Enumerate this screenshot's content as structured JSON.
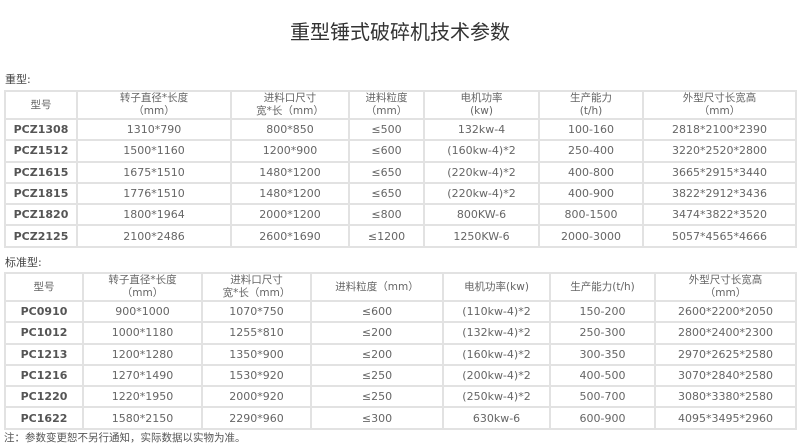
{
  "title": "重型锤式破碎机技术参数",
  "heavy": {
    "label": "重型:",
    "headers": [
      [
        "型号",
        ""
      ],
      [
        "转子直径*长度",
        "（mm）"
      ],
      [
        "进料口尺寸",
        "宽*长（mm）"
      ],
      [
        "进料粒度",
        "（mm）"
      ],
      [
        "电机功率",
        "(kw)"
      ],
      [
        "生产能力",
        "(t/h)"
      ],
      [
        "外型尺寸长宽高",
        "（mm）"
      ]
    ],
    "rows": [
      [
        "PCZ1308",
        "1310*790",
        "800*850",
        "≤500",
        "132kw-4",
        "100-160",
        "2818*2100*2390"
      ],
      [
        "PCZ1512",
        "1500*1160",
        "1200*900",
        "≤600",
        "(160kw-4)*2",
        "250-400",
        "3220*2520*2800"
      ],
      [
        "PCZ1615",
        "1675*1510",
        "1480*1200",
        "≤650",
        "(220kw-4)*2",
        "400-800",
        "3665*2915*3440"
      ],
      [
        "PCZ1815",
        "1776*1510",
        "1480*1200",
        "≤650",
        "(220kw-4)*2",
        "400-900",
        "3822*2912*3436"
      ],
      [
        "PCZ1820",
        "1800*1964",
        "2000*1200",
        "≤800",
        "800KW-6",
        "800-1500",
        "3474*3822*3520"
      ],
      [
        "PCZ2125",
        "2100*2486",
        "2600*1690",
        "≤1200",
        "1250KW-6",
        "2000-3000",
        "5057*4565*4666"
      ]
    ]
  },
  "standard": {
    "label": "标准型:",
    "headers": [
      [
        "型号",
        ""
      ],
      [
        "转子直径*长度",
        "（mm）"
      ],
      [
        "进料口尺寸",
        "宽*长（mm）"
      ],
      [
        "进料粒度（mm）",
        ""
      ],
      [
        "电机功率(kw)",
        ""
      ],
      [
        "生产能力(t/h)",
        ""
      ],
      [
        "外型尺寸长宽高",
        "（mm）"
      ]
    ],
    "rows": [
      [
        "PC0910",
        "900*1000",
        "1070*750",
        "≤600",
        "(110kw-4)*2",
        "150-200",
        "2600*2200*2050"
      ],
      [
        "PC1012",
        "1000*1180",
        "1255*810",
        "≤200",
        "(132kw-4)*2",
        "250-300",
        "2800*2400*2300"
      ],
      [
        "PC1213",
        "1200*1280",
        "1350*900",
        "≤200",
        "(160kw-4)*2",
        "300-350",
        "2970*2625*2580"
      ],
      [
        "PC1216",
        "1270*1490",
        "1530*920",
        "≤250",
        "(200kw-4)*2",
        "400-500",
        "3070*2840*2580"
      ],
      [
        "PC1220",
        "1220*1950",
        "2000*920",
        "≤250",
        "(250kw-4)*2",
        "500-700",
        "3080*3380*2580"
      ],
      [
        "PC1622",
        "1580*2150",
        "2290*960",
        "≤300",
        "630kw-6",
        "600-900",
        "4095*3495*2960"
      ]
    ]
  },
  "note": "注：参数变更恕不另行通知，实际数据以实物为准。"
}
